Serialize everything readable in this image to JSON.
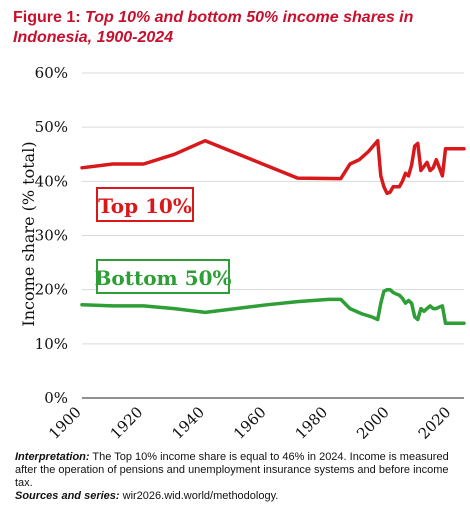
{
  "title": {
    "prefix": "Figure 1:",
    "text": "Top 10% and bottom 50% income shares in Indonesia, 1900-2024"
  },
  "footer": {
    "interpretation_label": "Interpretation:",
    "interpretation_text": "The Top 10% income share is equal to 46% in 2024. Income is measured after the operation of pensions and unemployment insurance systems and before income tax.",
    "sources_label": "Sources and series:",
    "sources_text": "wir2026.wid.world/methodology."
  },
  "chart_data": {
    "type": "line",
    "title": "Top 10% and bottom 50% income shares in Indonesia, 1900-2024",
    "xlabel": "",
    "ylabel": "Income share (% total)",
    "xlim": [
      1900,
      2024
    ],
    "ylim": [
      0,
      60
    ],
    "xticks": [
      "1900",
      "1920",
      "1940",
      "1960",
      "1980",
      "2000",
      "2020"
    ],
    "yticks": [
      "0%",
      "10%",
      "20%",
      "30%",
      "40%",
      "50%",
      "60%"
    ],
    "grid": "horizontal",
    "series": [
      {
        "name": "Top 10%",
        "color": "#d7191c",
        "x": [
          1900,
          1910,
          1920,
          1930,
          1940,
          1970,
          1984,
          1987,
          1990,
          1993,
          1996,
          1997,
          1998,
          1999,
          2000,
          2001,
          2003,
          2004,
          2005,
          2006,
          2007,
          2008,
          2009,
          2010,
          2012,
          2013,
          2014,
          2015,
          2016,
          2017,
          2018,
          2019,
          2024
        ],
        "y": [
          42.5,
          43.2,
          43.2,
          45.0,
          47.5,
          40.6,
          40.5,
          43.2,
          44.0,
          45.5,
          47.5,
          41.0,
          39.0,
          37.8,
          38.0,
          39.0,
          39.0,
          40.0,
          41.5,
          41.0,
          43.0,
          46.5,
          47.0,
          42.0,
          43.5,
          42.0,
          42.5,
          44.0,
          42.5,
          41.0,
          46.0,
          46.0,
          46.0
        ]
      },
      {
        "name": "Bottom 50%",
        "color": "#2e9e36",
        "x": [
          1900,
          1910,
          1920,
          1930,
          1940,
          1960,
          1970,
          1980,
          1984,
          1987,
          1991,
          1994,
          1996,
          1997,
          1998,
          1999,
          2000,
          2001,
          2002,
          2003,
          2004,
          2005,
          2006,
          2007,
          2008,
          2009,
          2010,
          2011,
          2012,
          2013,
          2014,
          2015,
          2016,
          2017,
          2018,
          2019,
          2024
        ],
        "y": [
          17.2,
          17.0,
          17.0,
          16.5,
          15.8,
          17.2,
          17.8,
          18.2,
          18.2,
          16.5,
          15.5,
          15.0,
          14.5,
          17.5,
          19.7,
          20.0,
          20.0,
          19.5,
          19.2,
          19.0,
          18.4,
          17.5,
          18.0,
          17.5,
          15.0,
          14.5,
          16.5,
          16.0,
          16.5,
          17.0,
          16.5,
          16.5,
          16.8,
          17.0,
          13.8,
          13.8,
          13.8
        ]
      }
    ],
    "annotations": [
      "Top 10%",
      "Bottom 50%"
    ]
  }
}
